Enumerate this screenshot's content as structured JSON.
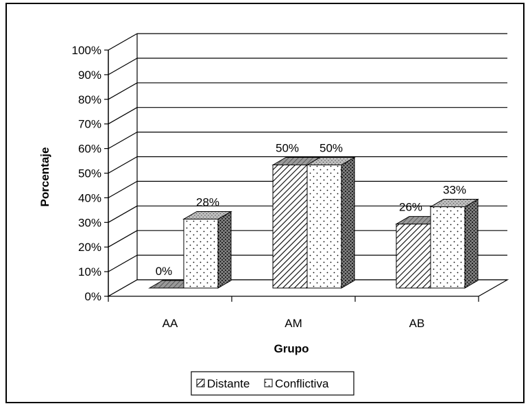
{
  "chart_data": {
    "type": "bar",
    "categories": [
      "AA",
      "AM",
      "AB"
    ],
    "series": [
      {
        "name": "Distante",
        "values": [
          0,
          50,
          26
        ],
        "labels": [
          "0%",
          "50%",
          "26%"
        ],
        "fill": "diagonal-hatch"
      },
      {
        "name": "Conflictiva",
        "values": [
          28,
          50,
          33
        ],
        "labels": [
          "28%",
          "50%",
          "33%"
        ],
        "fill": "dotted"
      }
    ],
    "xlabel": "Grupo",
    "ylabel": "Porcentaje",
    "ylim": [
      0,
      100
    ],
    "yticks": [
      "0%",
      "10%",
      "20%",
      "30%",
      "40%",
      "50%",
      "60%",
      "70%",
      "80%",
      "90%",
      "100%"
    ],
    "grid": true,
    "legend_position": "bottom",
    "style": "3d-clustered-column"
  },
  "colors": {
    "frame": "#000000",
    "background": "#ffffff",
    "bar_side": "#808080",
    "bar_top": "#c0c0c0"
  }
}
